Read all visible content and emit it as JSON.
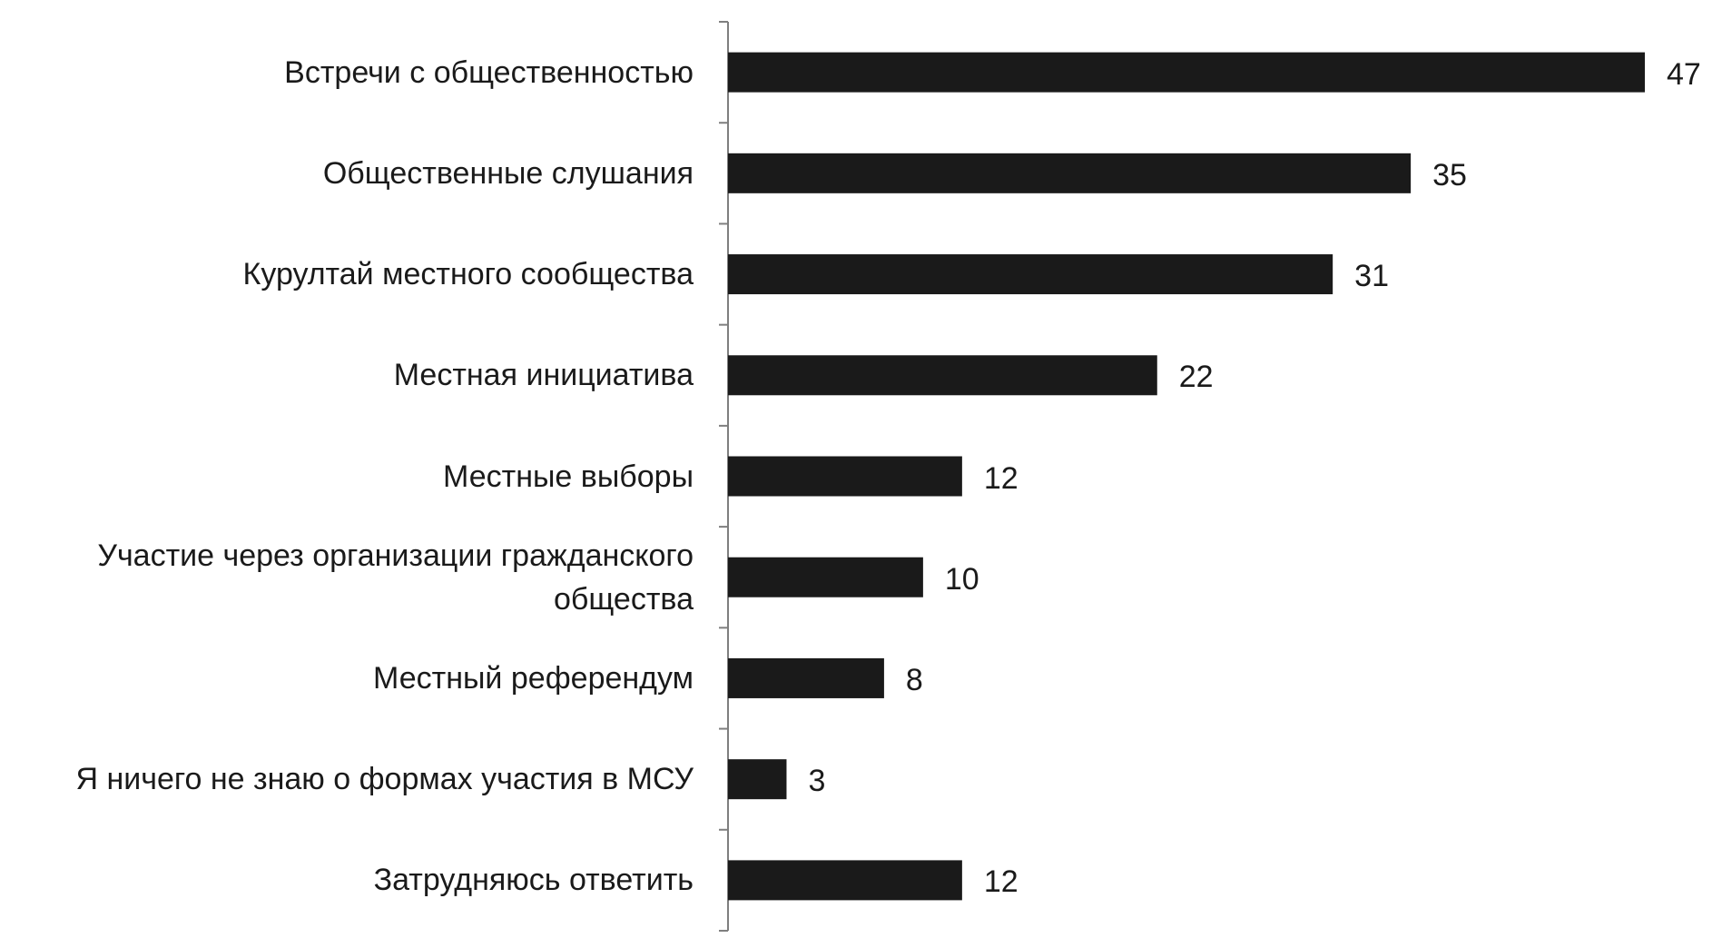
{
  "chart_data": {
    "type": "bar",
    "orientation": "horizontal",
    "categories": [
      "Встречи с общественностью",
      "Общественные слушания",
      "Курултай местного сообщества",
      "Местная инициатива",
      "Местные выборы",
      "Участие через организации гражданского\nобщества",
      "Местный референдум",
      "Я ничего не знаю о формах участия в МСУ",
      "Затрудняюсь ответить"
    ],
    "values": [
      47,
      35,
      31,
      22,
      12,
      10,
      8,
      3,
      12
    ],
    "color": "#1a1a1a"
  }
}
